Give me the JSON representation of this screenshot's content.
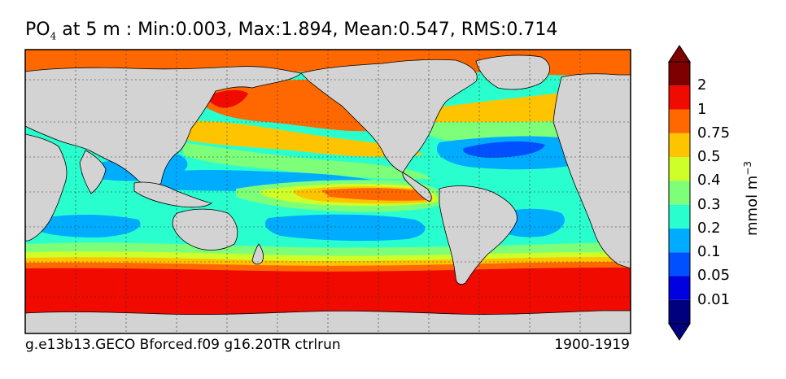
{
  "title": {
    "variable": "PO",
    "variable_subscript": "4",
    "text": "at 5 m : Min:0.003, Max:1.894, Mean:0.547, RMS:0.714"
  },
  "footer": {
    "left": "g.e13b13.GECO Bforced.f09 g16.20TR ctrlrun",
    "right": "1900-1919"
  },
  "colorbar": {
    "units_text": "mmol m",
    "units_exp": "−3",
    "levels": [
      {
        "label": "",
        "color": "#00007f"
      },
      {
        "label": "0.01",
        "color": "#0000e0"
      },
      {
        "label": "0.05",
        "color": "#0050ff"
      },
      {
        "label": "0.1",
        "color": "#00acff"
      },
      {
        "label": "0.2",
        "color": "#29ffce"
      },
      {
        "label": "0.3",
        "color": "#7dff7a"
      },
      {
        "label": "0.4",
        "color": "#ceff29"
      },
      {
        "label": "0.5",
        "color": "#ffc400"
      },
      {
        "label": "0.75",
        "color": "#ff6800"
      },
      {
        "label": "1",
        "color": "#f00a00"
      },
      {
        "label": "2",
        "color": "#7f0000"
      }
    ]
  },
  "map_colors": {
    "land": "#d3d3d3",
    "deep_blue": "#0050ff",
    "blue": "#00acff",
    "cyan": "#29ffce",
    "green": "#7dff7a",
    "yellow": "#ceff29",
    "orange_yellow": "#ffc400",
    "orange": "#ff6800",
    "red": "#f00a00"
  }
}
